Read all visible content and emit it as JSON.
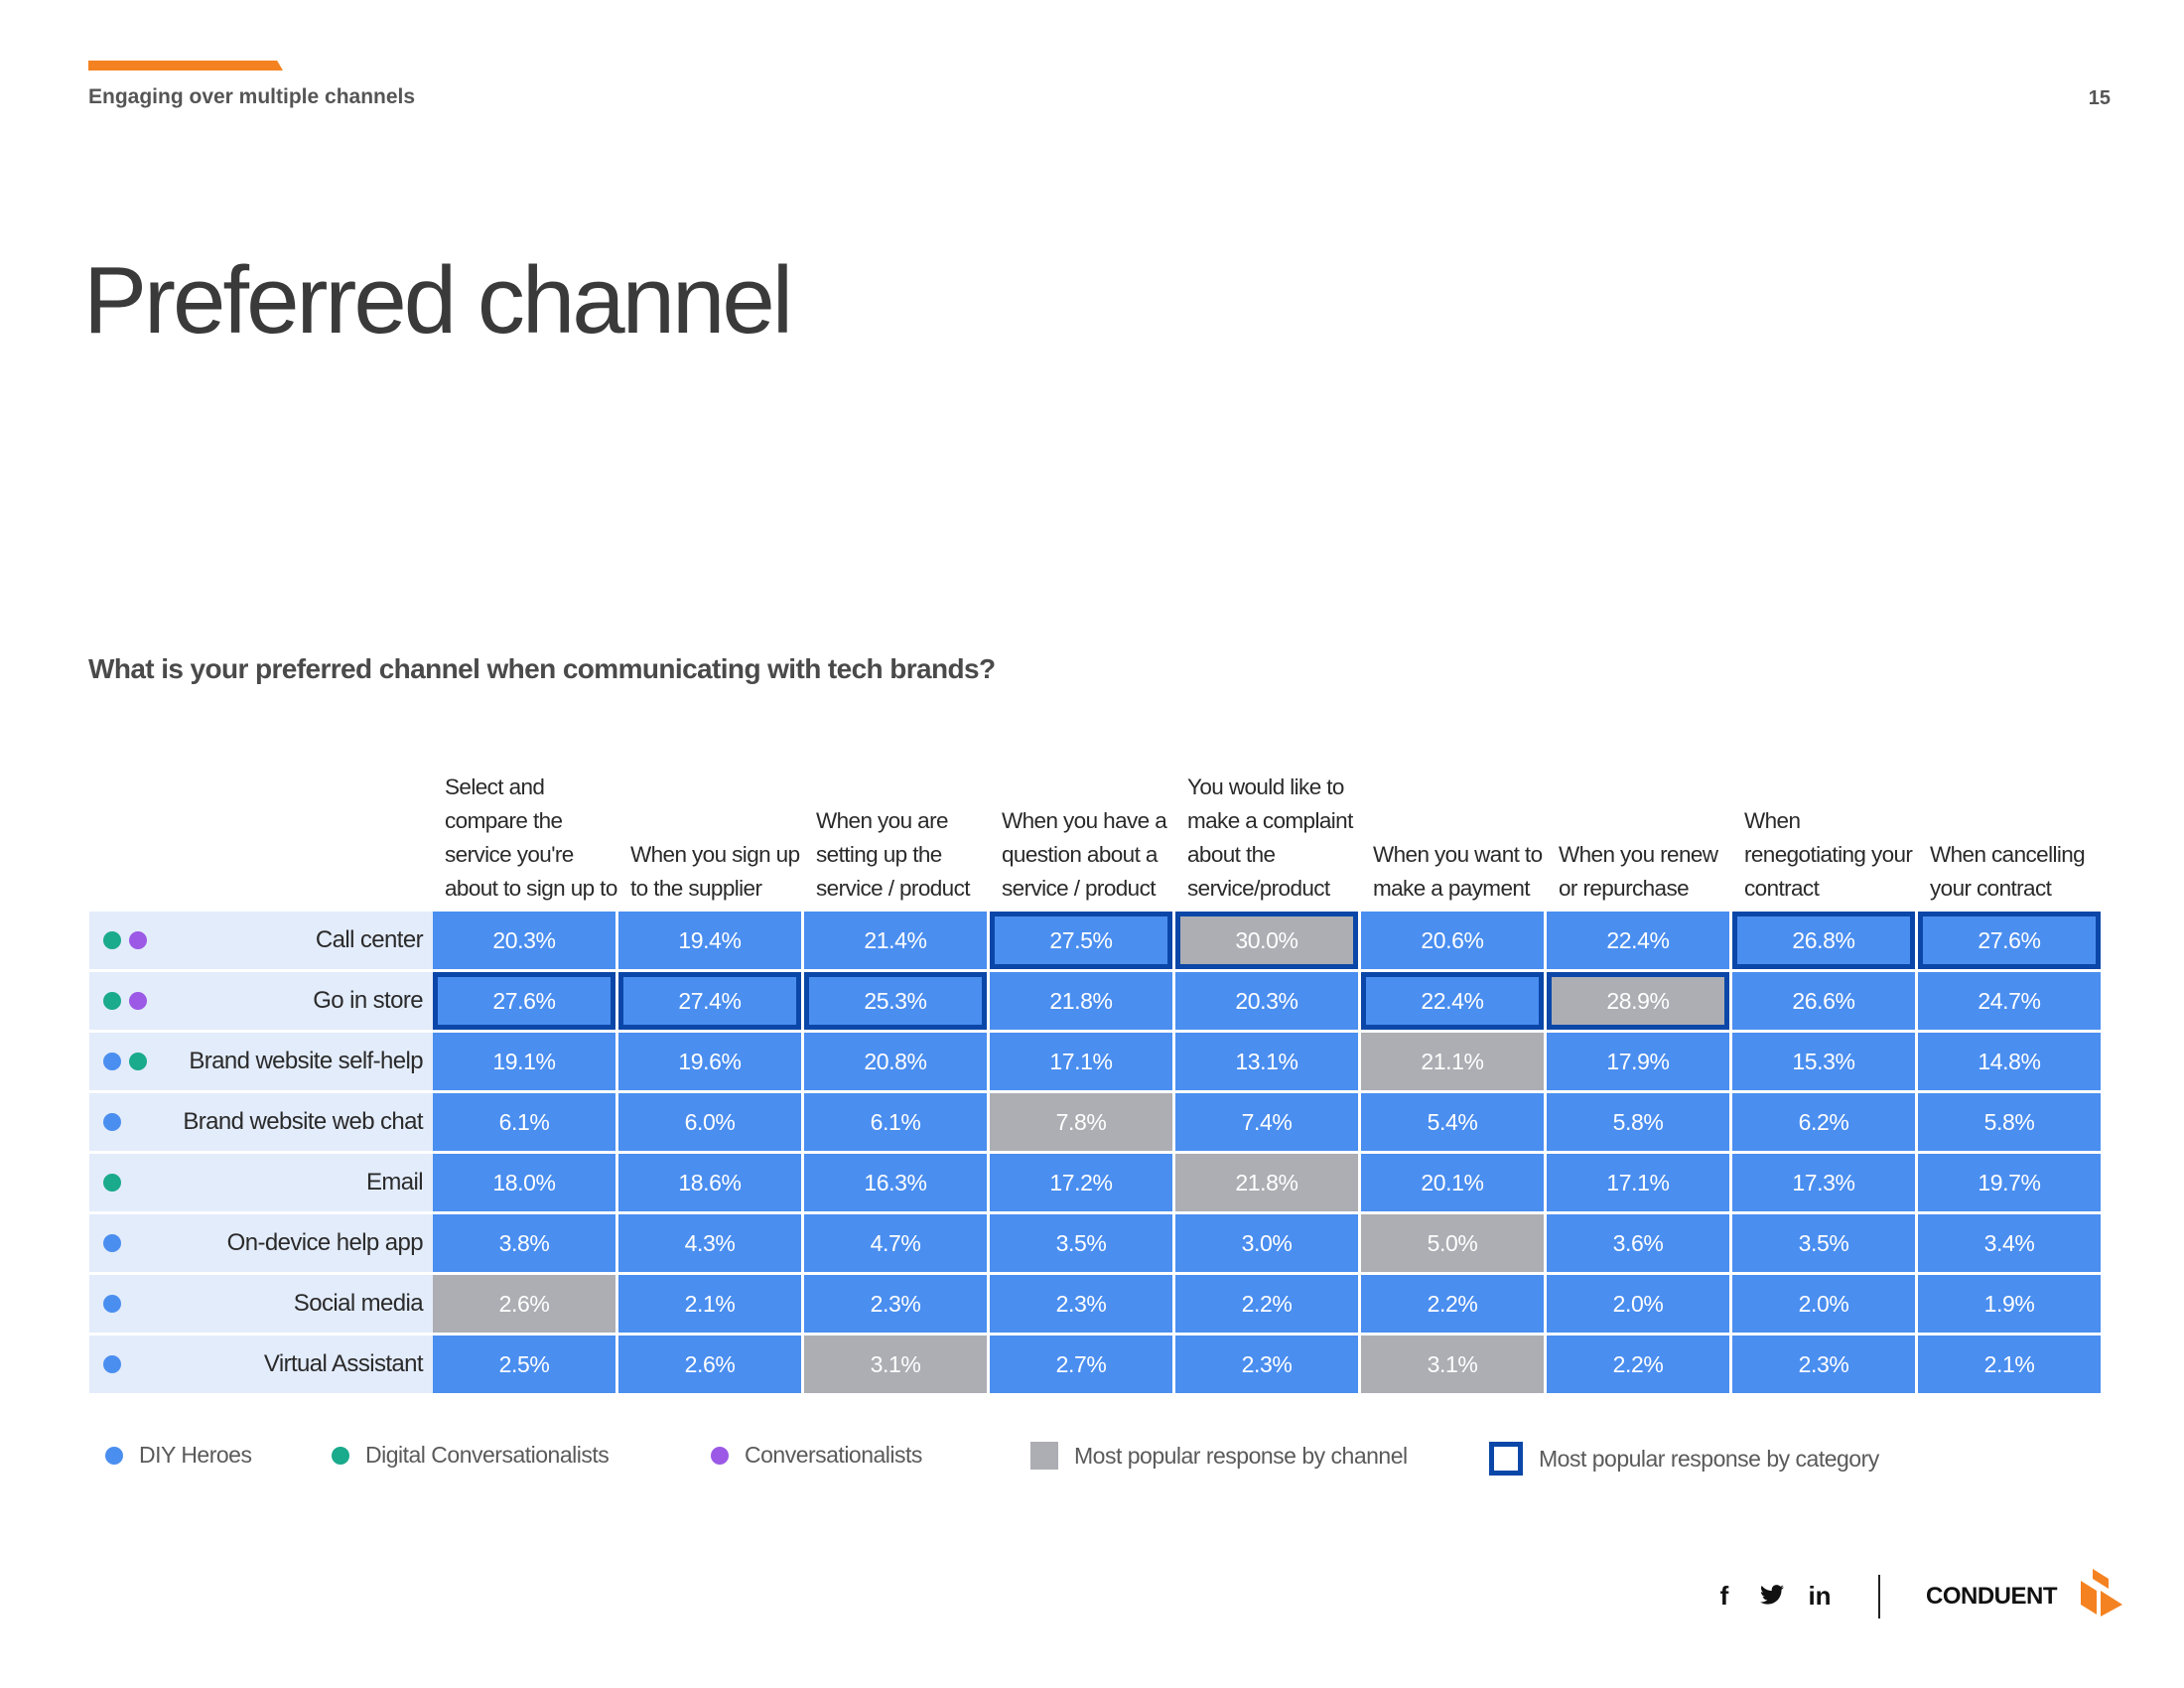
{
  "header": {
    "section_label": "Engaging over multiple channels",
    "page_number": "15"
  },
  "page_title": "Preferred channel",
  "question": "What is your preferred channel when communicating with tech brands?",
  "colors": {
    "accent": "#f58220",
    "cell_blue": "#4a8ef0",
    "cell_gray": "#acaeb3",
    "outline": "#0b47a8",
    "diy_heroes": "#4a8ef0",
    "digital_conversationalists": "#1aaa8c",
    "conversationalists": "#9b59e6"
  },
  "table": {
    "columns": [
      "Select and compare the service you're about to sign up to",
      "When you sign up to the supplier",
      "When you are setting up the service / product",
      "When you have a question about a service / product",
      "You would like to make a complaint about the service/product",
      "When you want to make a payment",
      "When you renew or repurchase",
      "When renegotiating your contract",
      "When cancelling your contract"
    ],
    "rows": [
      {
        "label": "Call center",
        "segments": [
          "digital_conversationalists",
          "conversationalists"
        ],
        "values": [
          "20.3%",
          "19.4%",
          "21.4%",
          "27.5%",
          "30.0%",
          "20.6%",
          "22.4%",
          "26.8%",
          "27.6%"
        ],
        "gray": [
          4
        ],
        "outlined": [
          3,
          4,
          7,
          8
        ]
      },
      {
        "label": "Go in store",
        "segments": [
          "digital_conversationalists",
          "conversationalists"
        ],
        "values": [
          "27.6%",
          "27.4%",
          "25.3%",
          "21.8%",
          "20.3%",
          "22.4%",
          "28.9%",
          "26.6%",
          "24.7%"
        ],
        "gray": [
          6
        ],
        "outlined": [
          0,
          1,
          2,
          5,
          6
        ]
      },
      {
        "label": "Brand website self-help",
        "segments": [
          "diy_heroes",
          "digital_conversationalists"
        ],
        "values": [
          "19.1%",
          "19.6%",
          "20.8%",
          "17.1%",
          "13.1%",
          "21.1%",
          "17.9%",
          "15.3%",
          "14.8%"
        ],
        "gray": [
          5
        ],
        "outlined": []
      },
      {
        "label": "Brand website web chat",
        "segments": [
          "diy_heroes"
        ],
        "values": [
          "6.1%",
          "6.0%",
          "6.1%",
          "7.8%",
          "7.4%",
          "5.4%",
          "5.8%",
          "6.2%",
          "5.8%"
        ],
        "gray": [
          3
        ],
        "outlined": []
      },
      {
        "label": "Email",
        "segments": [
          "digital_conversationalists"
        ],
        "values": [
          "18.0%",
          "18.6%",
          "16.3%",
          "17.2%",
          "21.8%",
          "20.1%",
          "17.1%",
          "17.3%",
          "19.7%"
        ],
        "gray": [
          4
        ],
        "outlined": []
      },
      {
        "label": "On-device help app",
        "segments": [
          "diy_heroes"
        ],
        "values": [
          "3.8%",
          "4.3%",
          "4.7%",
          "3.5%",
          "3.0%",
          "5.0%",
          "3.6%",
          "3.5%",
          "3.4%"
        ],
        "gray": [
          5
        ],
        "outlined": []
      },
      {
        "label": "Social media",
        "segments": [
          "diy_heroes"
        ],
        "values": [
          "2.6%",
          "2.1%",
          "2.3%",
          "2.3%",
          "2.2%",
          "2.2%",
          "2.0%",
          "2.0%",
          "1.9%"
        ],
        "gray": [
          0
        ],
        "outlined": []
      },
      {
        "label": "Virtual Assistant",
        "segments": [
          "diy_heroes"
        ],
        "values": [
          "2.5%",
          "2.6%",
          "3.1%",
          "2.7%",
          "2.3%",
          "3.1%",
          "2.2%",
          "2.3%",
          "2.1%"
        ],
        "gray": [
          2,
          5
        ],
        "outlined": []
      }
    ]
  },
  "legend": {
    "diy_heroes": "DIY Heroes",
    "digital_conversationalists": "Digital Conversationalists",
    "conversationalists": "Conversationalists",
    "by_channel": "Most popular response by channel",
    "by_category": "Most popular response by category"
  },
  "footer": {
    "social": [
      {
        "icon": "facebook-icon",
        "glyph": "f"
      },
      {
        "icon": "twitter-icon",
        "glyph": "🐦"
      },
      {
        "icon": "linkedin-icon",
        "glyph": "in"
      }
    ],
    "brand": "CONDUENT"
  }
}
